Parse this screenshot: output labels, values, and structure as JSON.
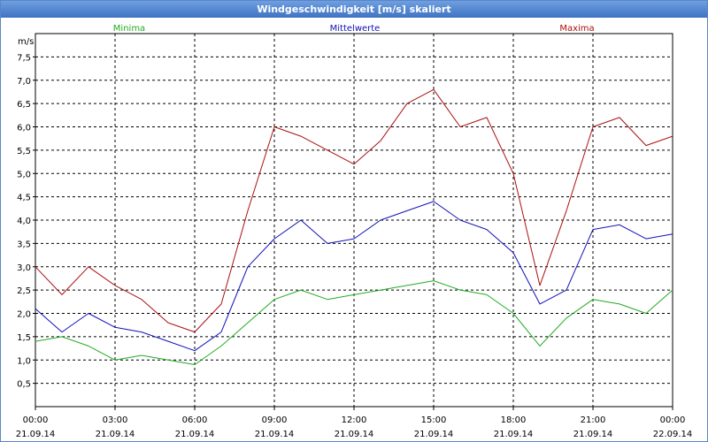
{
  "window": {
    "title": "Windgeschwindigkeit [m/s] skaliert"
  },
  "chart_data": {
    "type": "line",
    "title": "Windgeschwindigkeit [m/s] skaliert",
    "ylabel": "m/s",
    "xlabel": "",
    "ylim": [
      0,
      8
    ],
    "xlim_hours": [
      0,
      24
    ],
    "grid": true,
    "legend_position": "top",
    "yticks": [
      "0,5",
      "1,0",
      "1,5",
      "2,0",
      "2,5",
      "3,0",
      "3,5",
      "4,0",
      "4,5",
      "5,0",
      "5,5",
      "6,0",
      "6,5",
      "7,0",
      "7,5"
    ],
    "xticks": [
      {
        "time": "00:00",
        "date": "21.09.14"
      },
      {
        "time": "03:00",
        "date": "21.09.14"
      },
      {
        "time": "06:00",
        "date": "21.09.14"
      },
      {
        "time": "09:00",
        "date": "21.09.14"
      },
      {
        "time": "12:00",
        "date": "21.09.14"
      },
      {
        "time": "15:00",
        "date": "21.09.14"
      },
      {
        "time": "18:00",
        "date": "21.09.14"
      },
      {
        "time": "21:00",
        "date": "21.09.14"
      },
      {
        "time": "00:00",
        "date": "22.09.14"
      }
    ],
    "x_hours": [
      0,
      1,
      2,
      3,
      4,
      5,
      6,
      7,
      8,
      9,
      10,
      11,
      12,
      13,
      14,
      15,
      16,
      17,
      18,
      19,
      20,
      21,
      22,
      23,
      24
    ],
    "series": [
      {
        "name": "Minima",
        "color": "#22aa22",
        "values": [
          1.4,
          1.5,
          1.3,
          1.0,
          1.1,
          1.0,
          0.9,
          1.3,
          1.8,
          2.3,
          2.5,
          2.3,
          2.4,
          2.5,
          2.6,
          2.7,
          2.5,
          2.4,
          2.0,
          1.3,
          1.9,
          2.3,
          2.2,
          2.0,
          2.5
        ]
      },
      {
        "name": "Mittelwerte",
        "color": "#1010b8",
        "values": [
          2.1,
          1.6,
          2.0,
          1.7,
          1.6,
          1.4,
          1.2,
          1.6,
          3.0,
          3.6,
          4.0,
          3.5,
          3.6,
          4.0,
          4.2,
          4.4,
          4.0,
          3.8,
          3.3,
          2.2,
          2.5,
          3.8,
          3.9,
          3.6,
          3.7
        ]
      },
      {
        "name": "Maxima",
        "color": "#aa1010",
        "values": [
          3.0,
          2.4,
          3.0,
          2.6,
          2.3,
          1.8,
          1.6,
          2.2,
          4.2,
          6.0,
          5.8,
          5.5,
          5.2,
          5.7,
          6.5,
          6.8,
          6.0,
          6.2,
          5.0,
          2.6,
          4.2,
          6.0,
          6.2,
          5.6,
          5.8
        ]
      }
    ]
  }
}
